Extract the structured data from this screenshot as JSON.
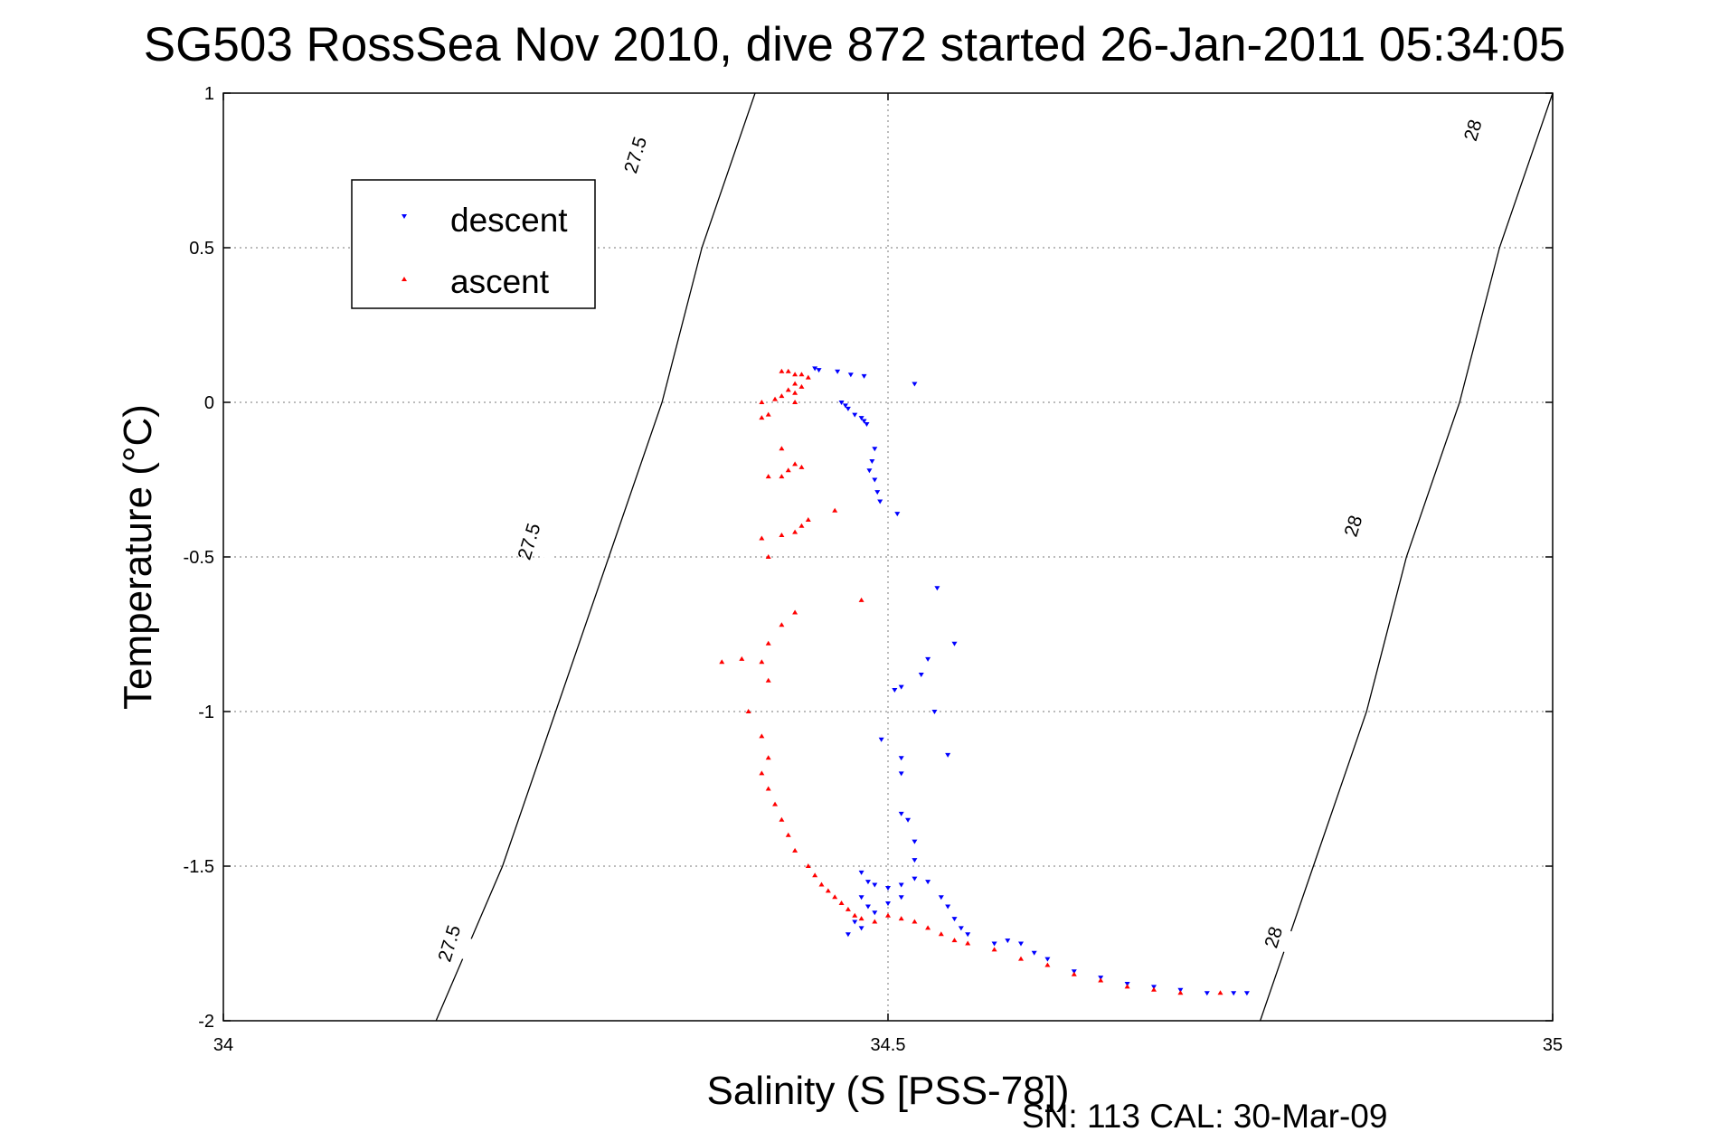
{
  "chart_data": {
    "type": "scatter",
    "title": "SG503 RossSea Nov 2010, dive 872 started 26-Jan-2011 05:34:05",
    "xlabel": "Salinity (S [PSS-78])",
    "ylabel": "Temperature (°C)",
    "xlim": [
      34,
      35
    ],
    "ylim": [
      -2,
      1
    ],
    "x_ticks": [
      {
        "value": 34,
        "label": "34"
      },
      {
        "value": 34.5,
        "label": "34.5"
      },
      {
        "value": 35,
        "label": "35"
      }
    ],
    "y_ticks": [
      {
        "value": 1,
        "label": "1"
      },
      {
        "value": 0.5,
        "label": "0.5"
      },
      {
        "value": 0,
        "label": "0"
      },
      {
        "value": -0.5,
        "label": "-0.5"
      },
      {
        "value": -1,
        "label": "-1"
      },
      {
        "value": -1.5,
        "label": "-1.5"
      },
      {
        "value": -2,
        "label": "-2"
      }
    ],
    "grid": true,
    "legend_position": "top-left",
    "footer": "SN: 113  CAL: 30-Mar-09",
    "contours": [
      {
        "label": "27.5",
        "color": "#000000",
        "points": [
          [
            34.16,
            -2.0
          ],
          [
            34.21,
            -1.5
          ],
          [
            34.25,
            -1.0
          ],
          [
            34.29,
            -0.5
          ],
          [
            34.33,
            0.0
          ],
          [
            34.36,
            0.5
          ],
          [
            34.4,
            1.0
          ]
        ],
        "label_positions": [
          [
            34.17,
            -1.75
          ],
          [
            34.23,
            -0.45
          ],
          [
            34.31,
            0.8
          ]
        ]
      },
      {
        "label": "28",
        "color": "#000000",
        "points": [
          [
            34.78,
            -2.0
          ],
          [
            34.82,
            -1.5
          ],
          [
            34.86,
            -1.0
          ],
          [
            34.89,
            -0.5
          ],
          [
            34.93,
            0.0
          ],
          [
            34.96,
            0.5
          ],
          [
            35.0,
            1.0
          ]
        ],
        "label_positions": [
          [
            34.79,
            -1.73
          ],
          [
            34.85,
            -0.4
          ],
          [
            34.94,
            0.88
          ]
        ]
      }
    ],
    "series": [
      {
        "name": "descent",
        "color": "#0000ff",
        "marker": "triangle-down",
        "points": [
          [
            34.445,
            0.11
          ],
          [
            34.448,
            0.105
          ],
          [
            34.462,
            0.1
          ],
          [
            34.472,
            0.09
          ],
          [
            34.482,
            0.085
          ],
          [
            34.52,
            0.06
          ],
          [
            34.465,
            0.0
          ],
          [
            34.468,
            -0.01
          ],
          [
            34.47,
            -0.02
          ],
          [
            34.475,
            -0.04
          ],
          [
            34.48,
            -0.05
          ],
          [
            34.482,
            -0.06
          ],
          [
            34.484,
            -0.07
          ],
          [
            34.49,
            -0.15
          ],
          [
            34.488,
            -0.19
          ],
          [
            34.486,
            -0.22
          ],
          [
            34.49,
            -0.25
          ],
          [
            34.492,
            -0.29
          ],
          [
            34.494,
            -0.32
          ],
          [
            34.507,
            -0.36
          ],
          [
            34.537,
            -0.6
          ],
          [
            34.55,
            -0.78
          ],
          [
            34.53,
            -0.83
          ],
          [
            34.525,
            -0.88
          ],
          [
            34.51,
            -0.92
          ],
          [
            34.505,
            -0.93
          ],
          [
            34.535,
            -1.0
          ],
          [
            34.495,
            -1.09
          ],
          [
            34.51,
            -1.15
          ],
          [
            34.545,
            -1.14
          ],
          [
            34.51,
            -1.2
          ],
          [
            34.51,
            -1.33
          ],
          [
            34.515,
            -1.35
          ],
          [
            34.52,
            -1.42
          ],
          [
            34.52,
            -1.48
          ],
          [
            34.48,
            -1.52
          ],
          [
            34.485,
            -1.55
          ],
          [
            34.49,
            -1.56
          ],
          [
            34.5,
            -1.57
          ],
          [
            34.51,
            -1.56
          ],
          [
            34.52,
            -1.54
          ],
          [
            34.53,
            -1.55
          ],
          [
            34.54,
            -1.6
          ],
          [
            34.545,
            -1.63
          ],
          [
            34.55,
            -1.67
          ],
          [
            34.555,
            -1.7
          ],
          [
            34.48,
            -1.6
          ],
          [
            34.485,
            -1.63
          ],
          [
            34.475,
            -1.68
          ],
          [
            34.48,
            -1.7
          ],
          [
            34.47,
            -1.72
          ],
          [
            34.49,
            -1.65
          ],
          [
            34.5,
            -1.62
          ],
          [
            34.51,
            -1.6
          ],
          [
            34.56,
            -1.72
          ],
          [
            34.58,
            -1.75
          ],
          [
            34.59,
            -1.74
          ],
          [
            34.6,
            -1.75
          ],
          [
            34.61,
            -1.78
          ],
          [
            34.62,
            -1.8
          ],
          [
            34.64,
            -1.84
          ],
          [
            34.66,
            -1.86
          ],
          [
            34.68,
            -1.88
          ],
          [
            34.7,
            -1.89
          ],
          [
            34.72,
            -1.9
          ],
          [
            34.74,
            -1.91
          ],
          [
            34.76,
            -1.91
          ],
          [
            34.77,
            -1.91
          ]
        ]
      },
      {
        "name": "ascent",
        "color": "#ff0000",
        "marker": "triangle-up",
        "points": [
          [
            34.42,
            0.1
          ],
          [
            34.425,
            0.1
          ],
          [
            34.43,
            0.09
          ],
          [
            34.435,
            0.09
          ],
          [
            34.44,
            0.08
          ],
          [
            34.43,
            0.06
          ],
          [
            34.435,
            0.05
          ],
          [
            34.425,
            0.04
          ],
          [
            34.43,
            0.03
          ],
          [
            34.42,
            0.02
          ],
          [
            34.415,
            0.01
          ],
          [
            34.405,
            0.0
          ],
          [
            34.43,
            0.0
          ],
          [
            34.41,
            -0.04
          ],
          [
            34.405,
            -0.05
          ],
          [
            34.42,
            -0.15
          ],
          [
            34.43,
            -0.2
          ],
          [
            34.425,
            -0.22
          ],
          [
            34.42,
            -0.24
          ],
          [
            34.435,
            -0.21
          ],
          [
            34.41,
            -0.24
          ],
          [
            34.46,
            -0.35
          ],
          [
            34.44,
            -0.38
          ],
          [
            34.435,
            -0.4
          ],
          [
            34.43,
            -0.42
          ],
          [
            34.42,
            -0.43
          ],
          [
            34.405,
            -0.44
          ],
          [
            34.41,
            -0.5
          ],
          [
            34.48,
            -0.64
          ],
          [
            34.43,
            -0.68
          ],
          [
            34.42,
            -0.72
          ],
          [
            34.41,
            -0.78
          ],
          [
            34.405,
            -0.84
          ],
          [
            34.39,
            -0.83
          ],
          [
            34.375,
            -0.84
          ],
          [
            34.41,
            -0.9
          ],
          [
            34.395,
            -1.0
          ],
          [
            34.405,
            -1.08
          ],
          [
            34.41,
            -1.15
          ],
          [
            34.405,
            -1.2
          ],
          [
            34.41,
            -1.25
          ],
          [
            34.415,
            -1.3
          ],
          [
            34.42,
            -1.35
          ],
          [
            34.425,
            -1.4
          ],
          [
            34.43,
            -1.45
          ],
          [
            34.44,
            -1.5
          ],
          [
            34.445,
            -1.53
          ],
          [
            34.45,
            -1.56
          ],
          [
            34.455,
            -1.58
          ],
          [
            34.46,
            -1.6
          ],
          [
            34.465,
            -1.62
          ],
          [
            34.47,
            -1.64
          ],
          [
            34.475,
            -1.66
          ],
          [
            34.48,
            -1.67
          ],
          [
            34.49,
            -1.68
          ],
          [
            34.5,
            -1.66
          ],
          [
            34.51,
            -1.67
          ],
          [
            34.52,
            -1.68
          ],
          [
            34.53,
            -1.7
          ],
          [
            34.54,
            -1.72
          ],
          [
            34.55,
            -1.74
          ],
          [
            34.56,
            -1.75
          ],
          [
            34.58,
            -1.77
          ],
          [
            34.6,
            -1.8
          ],
          [
            34.62,
            -1.82
          ],
          [
            34.64,
            -1.85
          ],
          [
            34.66,
            -1.87
          ],
          [
            34.68,
            -1.89
          ],
          [
            34.7,
            -1.9
          ],
          [
            34.72,
            -1.91
          ],
          [
            34.75,
            -1.91
          ]
        ]
      }
    ]
  }
}
